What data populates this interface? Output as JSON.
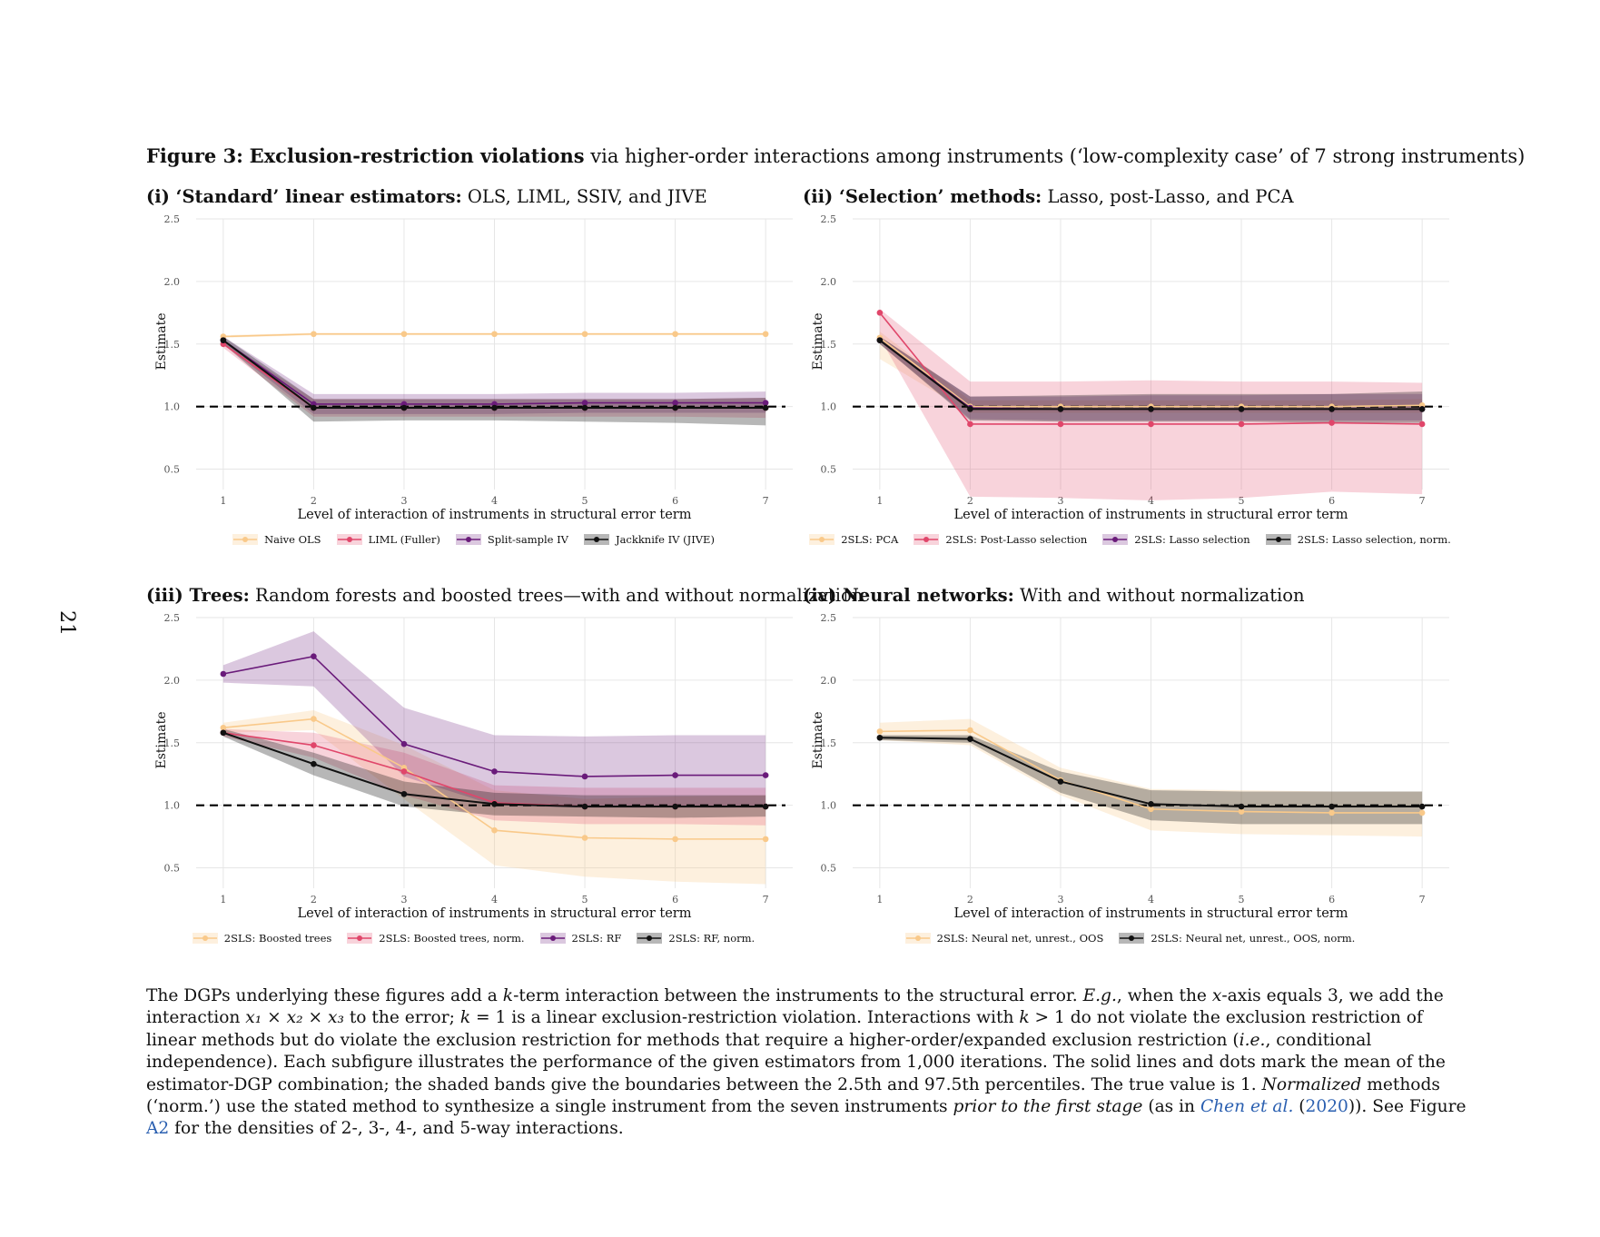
{
  "page_number": "21",
  "figure": {
    "label": "Figure 3:",
    "title_bold": "Exclusion-restriction violations",
    "title_rest": " via higher-order interactions among instruments (‘low-complexity case’ of 7 strong instruments)"
  },
  "panels": [
    {
      "title_bold": "(i) ‘Standard’ linear estimators:",
      "title_rest": " OLS, LIML, SSIV, and JIVE"
    },
    {
      "title_bold": "(ii) ‘Selection’ methods:",
      "title_rest": " Lasso, post-Lasso, and PCA"
    },
    {
      "title_bold": "(iii) Trees:",
      "title_rest": " Random forests and boosted trees—with and without normalization"
    },
    {
      "title_bold": "(iv) Neural networks:",
      "title_rest": " With and without normalization"
    }
  ],
  "colors": {
    "yellow": "#f9c98a",
    "pink": "#e0466a",
    "purple": "#6a1b7a",
    "black": "#111111"
  },
  "chart_data": [
    {
      "type": "line",
      "xlabel": "Level of interaction of instruments in structural error term",
      "ylabel": "Estimate",
      "x": [
        1,
        2,
        3,
        4,
        5,
        6,
        7
      ],
      "y_ticks": [
        "0.5",
        "1.0",
        "1.5",
        "2.0",
        "2.5"
      ],
      "ylim": [
        0.25,
        2.5
      ],
      "reference_line": 1.0,
      "series": [
        {
          "name": "Naive OLS",
          "color": "#f9c98a",
          "values": [
            1.56,
            1.58,
            1.58,
            1.58,
            1.58,
            1.58,
            1.58
          ],
          "lower": [
            1.55,
            1.57,
            1.57,
            1.57,
            1.57,
            1.57,
            1.57
          ],
          "upper": [
            1.57,
            1.59,
            1.59,
            1.59,
            1.59,
            1.59,
            1.59
          ]
        },
        {
          "name": "LIML (Fuller)",
          "color": "#e0466a",
          "values": [
            1.5,
            0.99,
            0.99,
            0.99,
            0.99,
            0.99,
            0.99
          ],
          "lower": [
            1.47,
            0.92,
            0.92,
            0.92,
            0.92,
            0.92,
            0.91
          ],
          "upper": [
            1.53,
            1.06,
            1.06,
            1.06,
            1.06,
            1.06,
            1.07
          ]
        },
        {
          "name": "Split-sample IV",
          "color": "#6a1b7a",
          "values": [
            1.53,
            1.02,
            1.02,
            1.02,
            1.03,
            1.03,
            1.03
          ],
          "lower": [
            1.5,
            0.94,
            0.94,
            0.94,
            0.95,
            0.95,
            0.95
          ],
          "upper": [
            1.56,
            1.1,
            1.1,
            1.1,
            1.11,
            1.11,
            1.12
          ]
        },
        {
          "name": "Jackknife IV (JIVE)",
          "color": "#111111",
          "values": [
            1.53,
            0.99,
            0.99,
            0.99,
            0.99,
            0.99,
            0.99
          ],
          "lower": [
            1.5,
            0.88,
            0.89,
            0.89,
            0.88,
            0.87,
            0.85
          ],
          "upper": [
            1.56,
            1.06,
            1.06,
            1.06,
            1.06,
            1.06,
            1.07
          ]
        }
      ]
    },
    {
      "type": "line",
      "xlabel": "Level of interaction of instruments in structural error term",
      "ylabel": "Estimate",
      "x": [
        1,
        2,
        3,
        4,
        5,
        6,
        7
      ],
      "y_ticks": [
        "0.5",
        "1.0",
        "1.5",
        "2.0",
        "2.5"
      ],
      "ylim": [
        0.25,
        2.5
      ],
      "reference_line": 1.0,
      "series": [
        {
          "name": "2SLS: PCA",
          "color": "#f9c98a",
          "values": [
            1.55,
            1.0,
            1.0,
            1.0,
            1.0,
            1.0,
            1.01
          ],
          "lower": [
            1.38,
            0.95,
            0.95,
            0.95,
            0.95,
            0.95,
            0.95
          ],
          "upper": [
            1.6,
            1.05,
            1.05,
            1.05,
            1.05,
            1.05,
            1.06
          ]
        },
        {
          "name": "2SLS: Post-Lasso selection",
          "color": "#e0466a",
          "values": [
            1.75,
            0.86,
            0.86,
            0.86,
            0.86,
            0.87,
            0.86
          ],
          "lower": [
            1.55,
            0.28,
            0.27,
            0.25,
            0.27,
            0.32,
            0.3
          ],
          "upper": [
            1.78,
            1.2,
            1.2,
            1.21,
            1.2,
            1.2,
            1.19
          ]
        },
        {
          "name": "2SLS: Lasso selection",
          "color": "#6a1b7a",
          "values": [
            1.53,
            0.99,
            0.98,
            0.98,
            0.98,
            0.98,
            0.98
          ],
          "lower": [
            1.5,
            0.9,
            0.89,
            0.89,
            0.89,
            0.89,
            0.89
          ],
          "upper": [
            1.56,
            1.08,
            1.08,
            1.09,
            1.09,
            1.1,
            1.1
          ]
        },
        {
          "name": "2SLS: Lasso selection, norm.",
          "color": "#111111",
          "values": [
            1.53,
            0.98,
            0.98,
            0.98,
            0.98,
            0.98,
            0.98
          ],
          "lower": [
            1.5,
            0.89,
            0.88,
            0.88,
            0.88,
            0.87,
            0.87
          ],
          "upper": [
            1.56,
            1.08,
            1.09,
            1.1,
            1.1,
            1.1,
            1.12
          ]
        }
      ]
    },
    {
      "type": "line",
      "xlabel": "Level of interaction of instruments in structural error term",
      "ylabel": "Estimate",
      "x": [
        1,
        2,
        3,
        4,
        5,
        6,
        7
      ],
      "y_ticks": [
        "0.5",
        "1.0",
        "1.5",
        "2.0",
        "2.5"
      ],
      "ylim": [
        0.25,
        2.5
      ],
      "reference_line": 1.0,
      "series": [
        {
          "name": "2SLS: Boosted trees",
          "color": "#f9c98a",
          "values": [
            1.62,
            1.69,
            1.3,
            0.8,
            0.74,
            0.73,
            0.73
          ],
          "lower": [
            1.58,
            1.6,
            1.05,
            0.52,
            0.43,
            0.39,
            0.37
          ],
          "upper": [
            1.66,
            1.76,
            1.48,
            1.12,
            1.05,
            1.07,
            1.08
          ]
        },
        {
          "name": "2SLS: Boosted trees, norm.",
          "color": "#e0466a",
          "values": [
            1.58,
            1.48,
            1.27,
            1.02,
            0.99,
            0.99,
            0.99
          ],
          "lower": [
            1.55,
            1.38,
            1.08,
            0.88,
            0.85,
            0.85,
            0.84
          ],
          "upper": [
            1.61,
            1.58,
            1.42,
            1.16,
            1.14,
            1.14,
            1.14
          ]
        },
        {
          "name": "2SLS: RF",
          "color": "#6a1b7a",
          "values": [
            2.05,
            2.19,
            1.49,
            1.27,
            1.23,
            1.24,
            1.24
          ],
          "lower": [
            1.98,
            1.95,
            1.23,
            1.0,
            0.98,
            0.98,
            0.98
          ],
          "upper": [
            2.12,
            2.39,
            1.78,
            1.56,
            1.55,
            1.56,
            1.56
          ]
        },
        {
          "name": "2SLS: RF, norm.",
          "color": "#111111",
          "values": [
            1.58,
            1.33,
            1.09,
            1.01,
            0.99,
            0.99,
            0.99
          ],
          "lower": [
            1.55,
            1.24,
            0.99,
            0.92,
            0.91,
            0.9,
            0.91
          ],
          "upper": [
            1.61,
            1.42,
            1.19,
            1.1,
            1.08,
            1.08,
            1.08
          ]
        }
      ]
    },
    {
      "type": "line",
      "xlabel": "Level of interaction of instruments in structural error term",
      "ylabel": "Estimate",
      "x": [
        1,
        2,
        3,
        4,
        5,
        6,
        7
      ],
      "y_ticks": [
        "0.5",
        "1.0",
        "1.5",
        "2.0",
        "2.5"
      ],
      "ylim": [
        0.25,
        2.5
      ],
      "reference_line": 1.0,
      "series": [
        {
          "name": "2SLS: Neural net, unrest., OOS",
          "color": "#f9c98a",
          "values": [
            1.59,
            1.6,
            1.2,
            0.97,
            0.95,
            0.94,
            0.94
          ],
          "lower": [
            1.52,
            1.48,
            1.08,
            0.8,
            0.77,
            0.76,
            0.75
          ],
          "upper": [
            1.66,
            1.69,
            1.3,
            1.13,
            1.12,
            1.11,
            1.11
          ]
        },
        {
          "name": "2SLS: Neural net, unrest., OOS, norm.",
          "color": "#111111",
          "values": [
            1.54,
            1.53,
            1.19,
            1.01,
            0.99,
            0.99,
            0.99
          ],
          "lower": [
            1.52,
            1.5,
            1.1,
            0.88,
            0.85,
            0.85,
            0.85
          ],
          "upper": [
            1.56,
            1.56,
            1.27,
            1.12,
            1.11,
            1.11,
            1.11
          ]
        }
      ]
    }
  ],
  "caption": {
    "s1": "The DGPs underlying these figures add a ",
    "k1": "k",
    "s2": "-term interaction between the instruments to the structural error. ",
    "eg": "E.g.",
    "s3": ", when the ",
    "xvar": "x",
    "s4": "-axis equals 3, we add the interaction ",
    "interaction": "x₁ × x₂ × x₃",
    "s5": " to the error; ",
    "k2": "k",
    "s6": " = 1 is a linear exclusion-restriction violation. Interactions with ",
    "k3": "k",
    "s7": " > 1 do not violate the exclusion restriction of linear methods but do violate the exclusion restriction for methods that require a higher-order/expanded exclusion restriction (",
    "ie": "i.e.",
    "s8": ", conditional independence). Each subfigure illustrates the performance of the given estimators from 1,000 iterations. The solid lines and dots mark the mean of the estimator-DGP combination; the shaded bands give the boundaries between the 2.5th and 97.5th percentiles. The true value is 1. ",
    "normalized": "Normalized",
    "s9": " methods (‘norm.’) use the stated method to synthesize a single instrument from the seven instruments ",
    "prior": "prior to the first stage",
    "s10": " (as in ",
    "cite_author": "Chen et al.",
    "s11": " (",
    "cite_year": "2020",
    "s12": ")). See Figure ",
    "fig_ref": "A2",
    "s13": " for the densities of 2-, 3-, 4-, and 5-way interactions."
  }
}
